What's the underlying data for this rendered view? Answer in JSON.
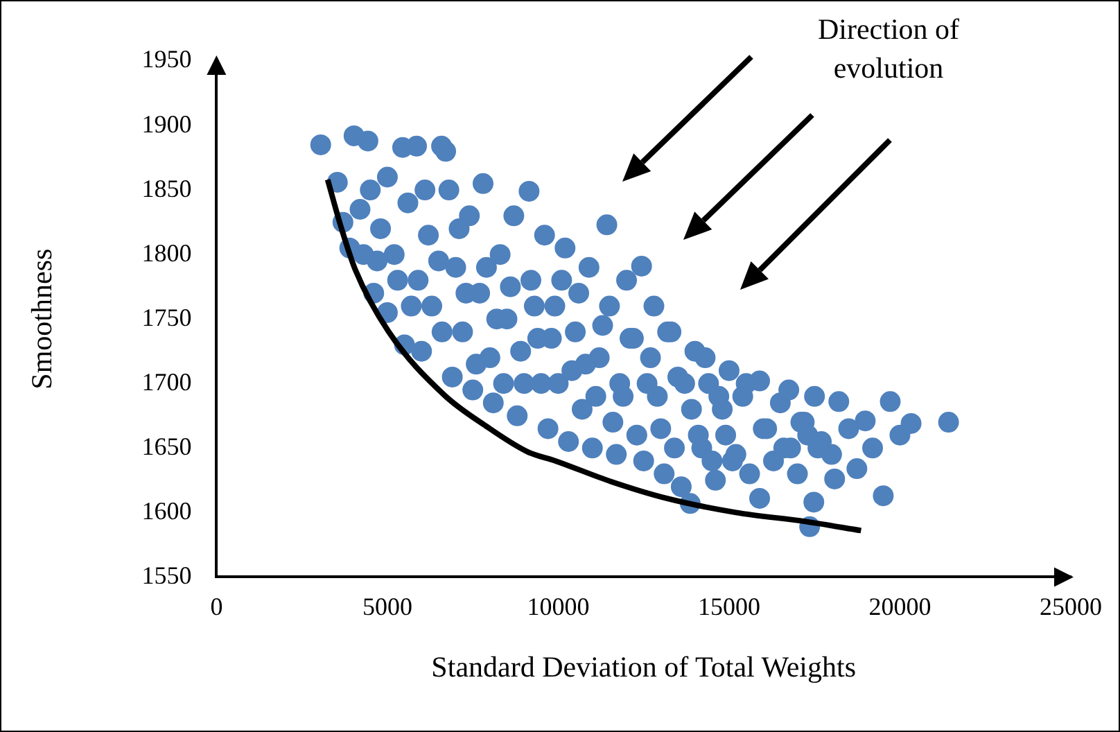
{
  "chart_data": {
    "type": "scatter",
    "xlabel": "Standard Deviation of Total Weights",
    "ylabel": "Smoothness",
    "xlim": [
      0,
      25000
    ],
    "ylim": [
      1550,
      1950
    ],
    "xticks": [
      0,
      5000,
      10000,
      15000,
      20000,
      25000
    ],
    "yticks": [
      1550,
      1600,
      1650,
      1700,
      1750,
      1800,
      1850,
      1900,
      1950
    ],
    "grid": false,
    "legend": false,
    "annotations": [
      "Direction of evolution"
    ],
    "series": [
      {
        "type": "scatter",
        "color": "#4f81bd",
        "marker": "circle",
        "x": [
          3049,
          3537,
          3700,
          3900,
          4024,
          4200,
          4300,
          4431,
          4500,
          4600,
          4800,
          5000,
          5000,
          5200,
          5447,
          5500,
          5600,
          5854,
          5900,
          6000,
          6200,
          6300,
          6585,
          6707,
          6800,
          6900,
          7000,
          7200,
          7400,
          7500,
          7700,
          7800,
          8000,
          8100,
          8300,
          8500,
          8700,
          8800,
          9000,
          9147,
          9200,
          9400,
          9600,
          9700,
          9900,
          10000,
          10200,
          10300,
          10500,
          10700,
          10900,
          11000,
          11200,
          11423,
          11500,
          11700,
          11900,
          12000,
          12200,
          12439,
          12500,
          12600,
          12800,
          13000,
          13100,
          13300,
          13500,
          13600,
          13862,
          13900,
          14000,
          14200,
          14400,
          14600,
          14800,
          15000,
          15200,
          15400,
          15600,
          15894,
          15894,
          16000,
          16300,
          16500,
          16748,
          16800,
          17000,
          17200,
          17358,
          17480,
          17500,
          17700,
          18000,
          18089,
          18211,
          18500,
          18740,
          18984,
          19200,
          19512,
          19716,
          20000,
          20326,
          21423,
          4700,
          5300,
          5700,
          6100,
          6500,
          6600,
          7100,
          7300,
          7600,
          7900,
          8200,
          8400,
          8600,
          8900,
          9300,
          9500,
          9800,
          10100,
          10400,
          10600,
          10800,
          11100,
          11300,
          11600,
          11800,
          12100,
          12300,
          12700,
          12900,
          13200,
          13400,
          13700,
          14100,
          14300,
          14500,
          14700,
          14900,
          15100,
          15500,
          16100,
          16600,
          17100,
          17300,
          17600
        ],
        "values": [
          1885,
          1856,
          1825,
          1805,
          1892,
          1835,
          1800,
          1888,
          1850,
          1770,
          1820,
          1755,
          1860,
          1800,
          1883,
          1730,
          1840,
          1884,
          1780,
          1725,
          1815,
          1760,
          1884,
          1880,
          1850,
          1705,
          1790,
          1740,
          1830,
          1695,
          1770,
          1855,
          1720,
          1685,
          1800,
          1750,
          1830,
          1675,
          1700,
          1849,
          1780,
          1735,
          1815,
          1665,
          1760,
          1700,
          1805,
          1655,
          1740,
          1680,
          1790,
          1650,
          1720,
          1823,
          1760,
          1645,
          1690,
          1780,
          1735,
          1791,
          1640,
          1700,
          1760,
          1665,
          1630,
          1740,
          1705,
          1620,
          1607,
          1680,
          1725,
          1650,
          1700,
          1625,
          1680,
          1710,
          1645,
          1690,
          1630,
          1702,
          1611,
          1665,
          1640,
          1685,
          1695,
          1650,
          1630,
          1670,
          1589,
          1608,
          1690,
          1655,
          1645,
          1626,
          1686,
          1665,
          1634,
          1671,
          1650,
          1613,
          1686,
          1660,
          1669,
          1670,
          1795,
          1780,
          1760,
          1850,
          1795,
          1740,
          1820,
          1770,
          1715,
          1790,
          1750,
          1700,
          1775,
          1725,
          1760,
          1700,
          1735,
          1780,
          1710,
          1770,
          1715,
          1690,
          1745,
          1670,
          1700,
          1735,
          1660,
          1720,
          1690,
          1740,
          1650,
          1700,
          1660,
          1720,
          1640,
          1690,
          1660,
          1640,
          1700,
          1665,
          1650,
          1670,
          1660,
          1650
        ]
      },
      {
        "type": "line",
        "color": "#000000",
        "marker": "none",
        "line_style": "solid",
        "x": [
          3252,
          3659,
          4065,
          5041,
          6667,
          7886,
          9106,
          9919,
          11545,
          13171,
          15203,
          17236,
          18862
        ],
        "values": [
          1858,
          1820,
          1788,
          1740,
          1691,
          1667,
          1647,
          1640,
          1624,
          1611,
          1600,
          1593,
          1586
        ]
      }
    ]
  }
}
